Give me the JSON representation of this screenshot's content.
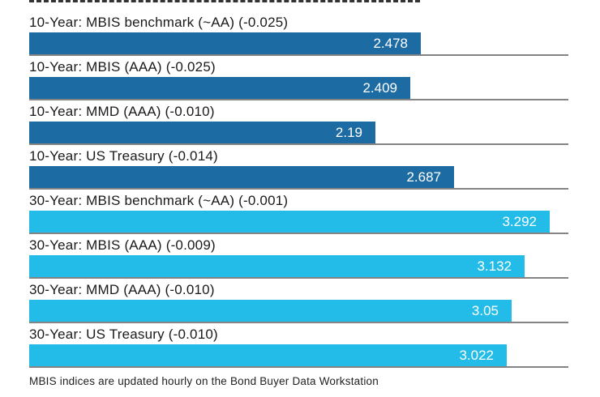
{
  "chart_data": {
    "type": "bar",
    "orientation": "horizontal",
    "title": "",
    "xlabel": "",
    "ylabel": "",
    "xlim": [
      0,
      3.41
    ],
    "grid": false,
    "legend": "none",
    "value_labels_position": "inside-right",
    "bars": [
      {
        "label": "10-Year: MBIS benchmark (~AA) (-0.025)",
        "value": 2.478,
        "display": "2.478",
        "group": "10-year",
        "color": "#1d6ba3"
      },
      {
        "label": "10-Year: MBIS (AAA) (-0.025)",
        "value": 2.409,
        "display": "2.409",
        "group": "10-year",
        "color": "#1d6ba3"
      },
      {
        "label": "10-Year: MMD (AAA) (-0.010)",
        "value": 2.19,
        "display": "2.19",
        "group": "10-year",
        "color": "#1d6ba3"
      },
      {
        "label": "10-Year: US Treasury (-0.014)",
        "value": 2.687,
        "display": "2.687",
        "group": "10-year",
        "color": "#1d6ba3"
      },
      {
        "label": "30-Year: MBIS benchmark (~AA) (-0.001)",
        "value": 3.292,
        "display": "3.292",
        "group": "30-year",
        "color": "#23bce8"
      },
      {
        "label": "30-Year: MBIS (AAA) (-0.009)",
        "value": 3.132,
        "display": "3.132",
        "group": "30-year",
        "color": "#23bce8"
      },
      {
        "label": "30-Year: MMD (AAA) (-0.010)",
        "value": 3.05,
        "display": "3.05",
        "group": "30-year",
        "color": "#23bce8"
      },
      {
        "label": "30-Year: US Treasury (-0.010)",
        "value": 3.022,
        "display": "3.022",
        "group": "30-year",
        "color": "#23bce8"
      }
    ],
    "footnote": "MBIS indices are updated hourly on the Bond Buyer Data Workstation"
  },
  "colors": {
    "bar_10_year": "#1d6ba3",
    "bar_30_year": "#23bce8",
    "separator": "#848484",
    "value_text": "#ffffff",
    "label_text": "#1a1a1a",
    "background": "#ffffff"
  }
}
